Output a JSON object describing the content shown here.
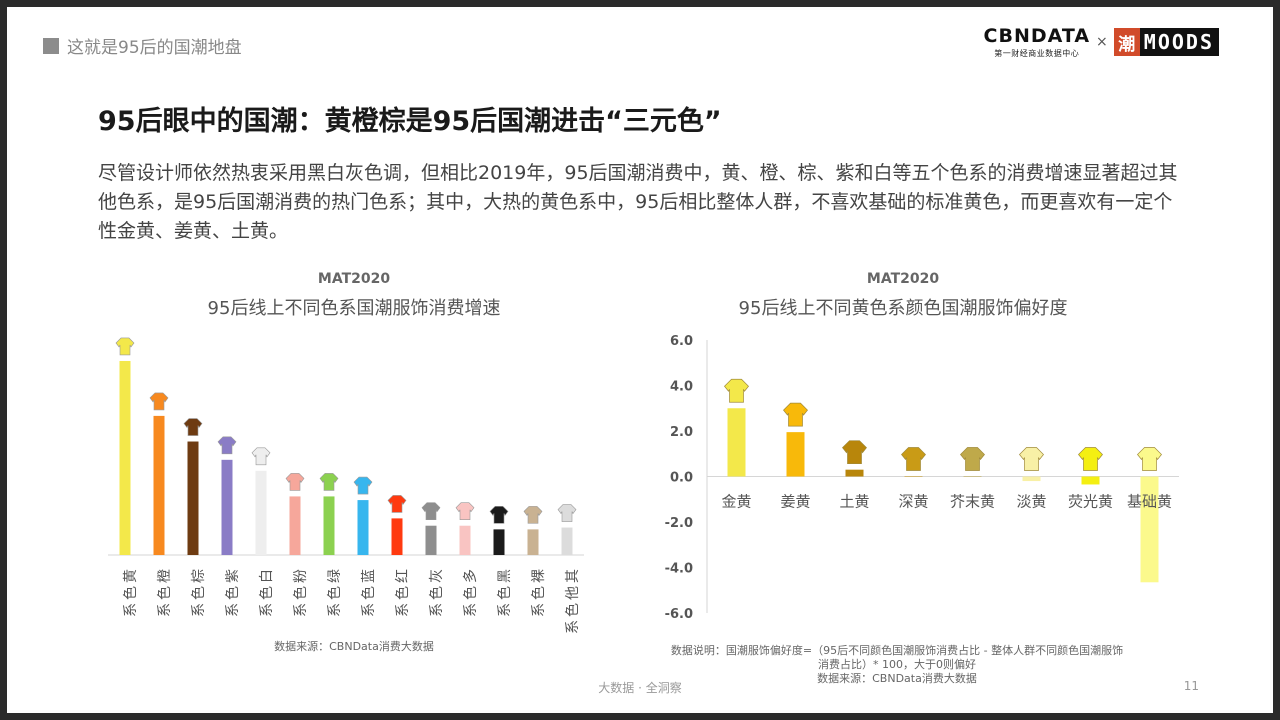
{
  "section": "这就是95后的国潮地盘",
  "logo": {
    "cbn_main": "CBNDATA",
    "cbn_sub": "第一财经商业数据中心",
    "times": "×",
    "chao": "潮",
    "moods": "MOODS"
  },
  "title": "95后眼中的国潮：黄橙棕是95后国潮进击“三元色”",
  "description": "尽管设计师依然热衷采用黑白灰色调，但相比2019年，95后国潮消费中，黄、橙、棕、紫和白等五个色系的消费增速显著超过其他色系，是95后国潮消费的热门色系；其中，大热的黄色系中，95后相比整体人群，不喜欢基础的标准黄色，而更喜欢有一定个性金黄、姜黄、土黄。",
  "footer": "大数据 · 全洞察",
  "page_number": "11",
  "chart_data": [
    {
      "type": "bar",
      "period": "MAT2020",
      "title": "95后线上不同色系国潮服饰消费增速",
      "categories": [
        "黄色系",
        "橙色系",
        "棕色系",
        "紫色系",
        "白色系",
        "粉色系",
        "绿色系",
        "蓝色系",
        "红色系",
        "灰色系",
        "多色系",
        "黑色系",
        "裸色系",
        "其他色系"
      ],
      "values": [
        5.3,
        3.8,
        3.1,
        2.6,
        2.3,
        1.6,
        1.6,
        1.5,
        1.0,
        0.8,
        0.8,
        0.7,
        0.7,
        0.75
      ],
      "colors": [
        "#f3e84a",
        "#f7891f",
        "#6e3b12",
        "#8a7cc6",
        "#eeeeee",
        "#f6a79b",
        "#8cd150",
        "#37b6ee",
        "#ff3a10",
        "#8e8e8e",
        "#f9c4c2",
        "#1b1b1b",
        "#c9b292",
        "#dcdcdc"
      ],
      "ylim": [
        0,
        5.6
      ],
      "source": "数据来源：CBNData消费大数据"
    },
    {
      "type": "bar",
      "period": "MAT2020",
      "title": "95后线上不同黄色系颜色国潮服饰偏好度",
      "categories": [
        "金黄",
        "姜黄",
        "土黄",
        "深黄",
        "芥末黄",
        "淡黄",
        "荧光黄",
        "基础黄"
      ],
      "values": [
        3.0,
        1.95,
        0.3,
        0.0,
        0.0,
        -0.2,
        -0.35,
        -4.65
      ],
      "colors": [
        "#f3e84a",
        "#f8b90a",
        "#b8860b",
        "#c99b16",
        "#bfa94a",
        "#f8f0a6",
        "#f4ef12",
        "#fbf98c"
      ],
      "ylim": [
        -6.0,
        6.0
      ],
      "yticks": [
        "6.0",
        "4.0",
        "2.0",
        "0.0",
        "-2.0",
        "-4.0",
        "-6.0"
      ],
      "note": "数据说明：国潮服饰偏好度=（95后不同颜色国潮服饰消费占比 - 整体人群不同颜色国潮服饰消费占比）* 100，大于0则偏好",
      "source": "数据来源：CBNData消费大数据"
    }
  ]
}
